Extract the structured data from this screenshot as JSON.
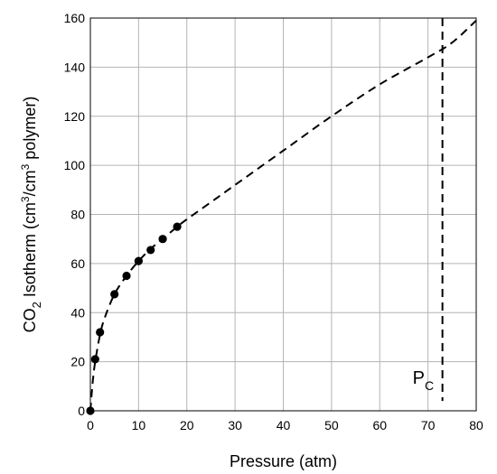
{
  "chart_data": {
    "type": "scatter",
    "title": "",
    "xlabel": "Pressure (atm)",
    "ylabel": {
      "prefix": "CO",
      "sub": "2",
      "mid1": " Isotherm (cm",
      "sup1": "3",
      "mid2": "/cm",
      "sup2": "3",
      "suffix": " polymer)"
    },
    "xlim": [
      0,
      80
    ],
    "ylim": [
      0,
      160
    ],
    "xticks": [
      0,
      10,
      20,
      30,
      40,
      50,
      60,
      70,
      80
    ],
    "yticks": [
      0,
      20,
      40,
      60,
      80,
      100,
      120,
      140,
      160
    ],
    "grid": true,
    "series": [
      {
        "kind": "points",
        "x": [
          0,
          1,
          2,
          5,
          7.5,
          10,
          12.5,
          15,
          18
        ],
        "y": [
          0,
          21,
          32,
          47.5,
          55,
          61,
          65.5,
          70,
          75
        ]
      },
      {
        "kind": "fit-dashed",
        "x": [
          0,
          0.5,
          1,
          2,
          3,
          5,
          7.5,
          10,
          12.5,
          15,
          18,
          20,
          25,
          30,
          40,
          50,
          60,
          70,
          75,
          80
        ],
        "y": [
          0,
          12,
          20,
          31,
          38,
          47.5,
          55,
          61,
          66,
          70,
          75,
          78,
          85,
          92,
          106,
          120,
          133,
          144,
          150,
          159
        ]
      }
    ],
    "annotations": {
      "critical_pressure": {
        "x": 73,
        "label_main": "P",
        "label_sub": "C"
      }
    }
  }
}
